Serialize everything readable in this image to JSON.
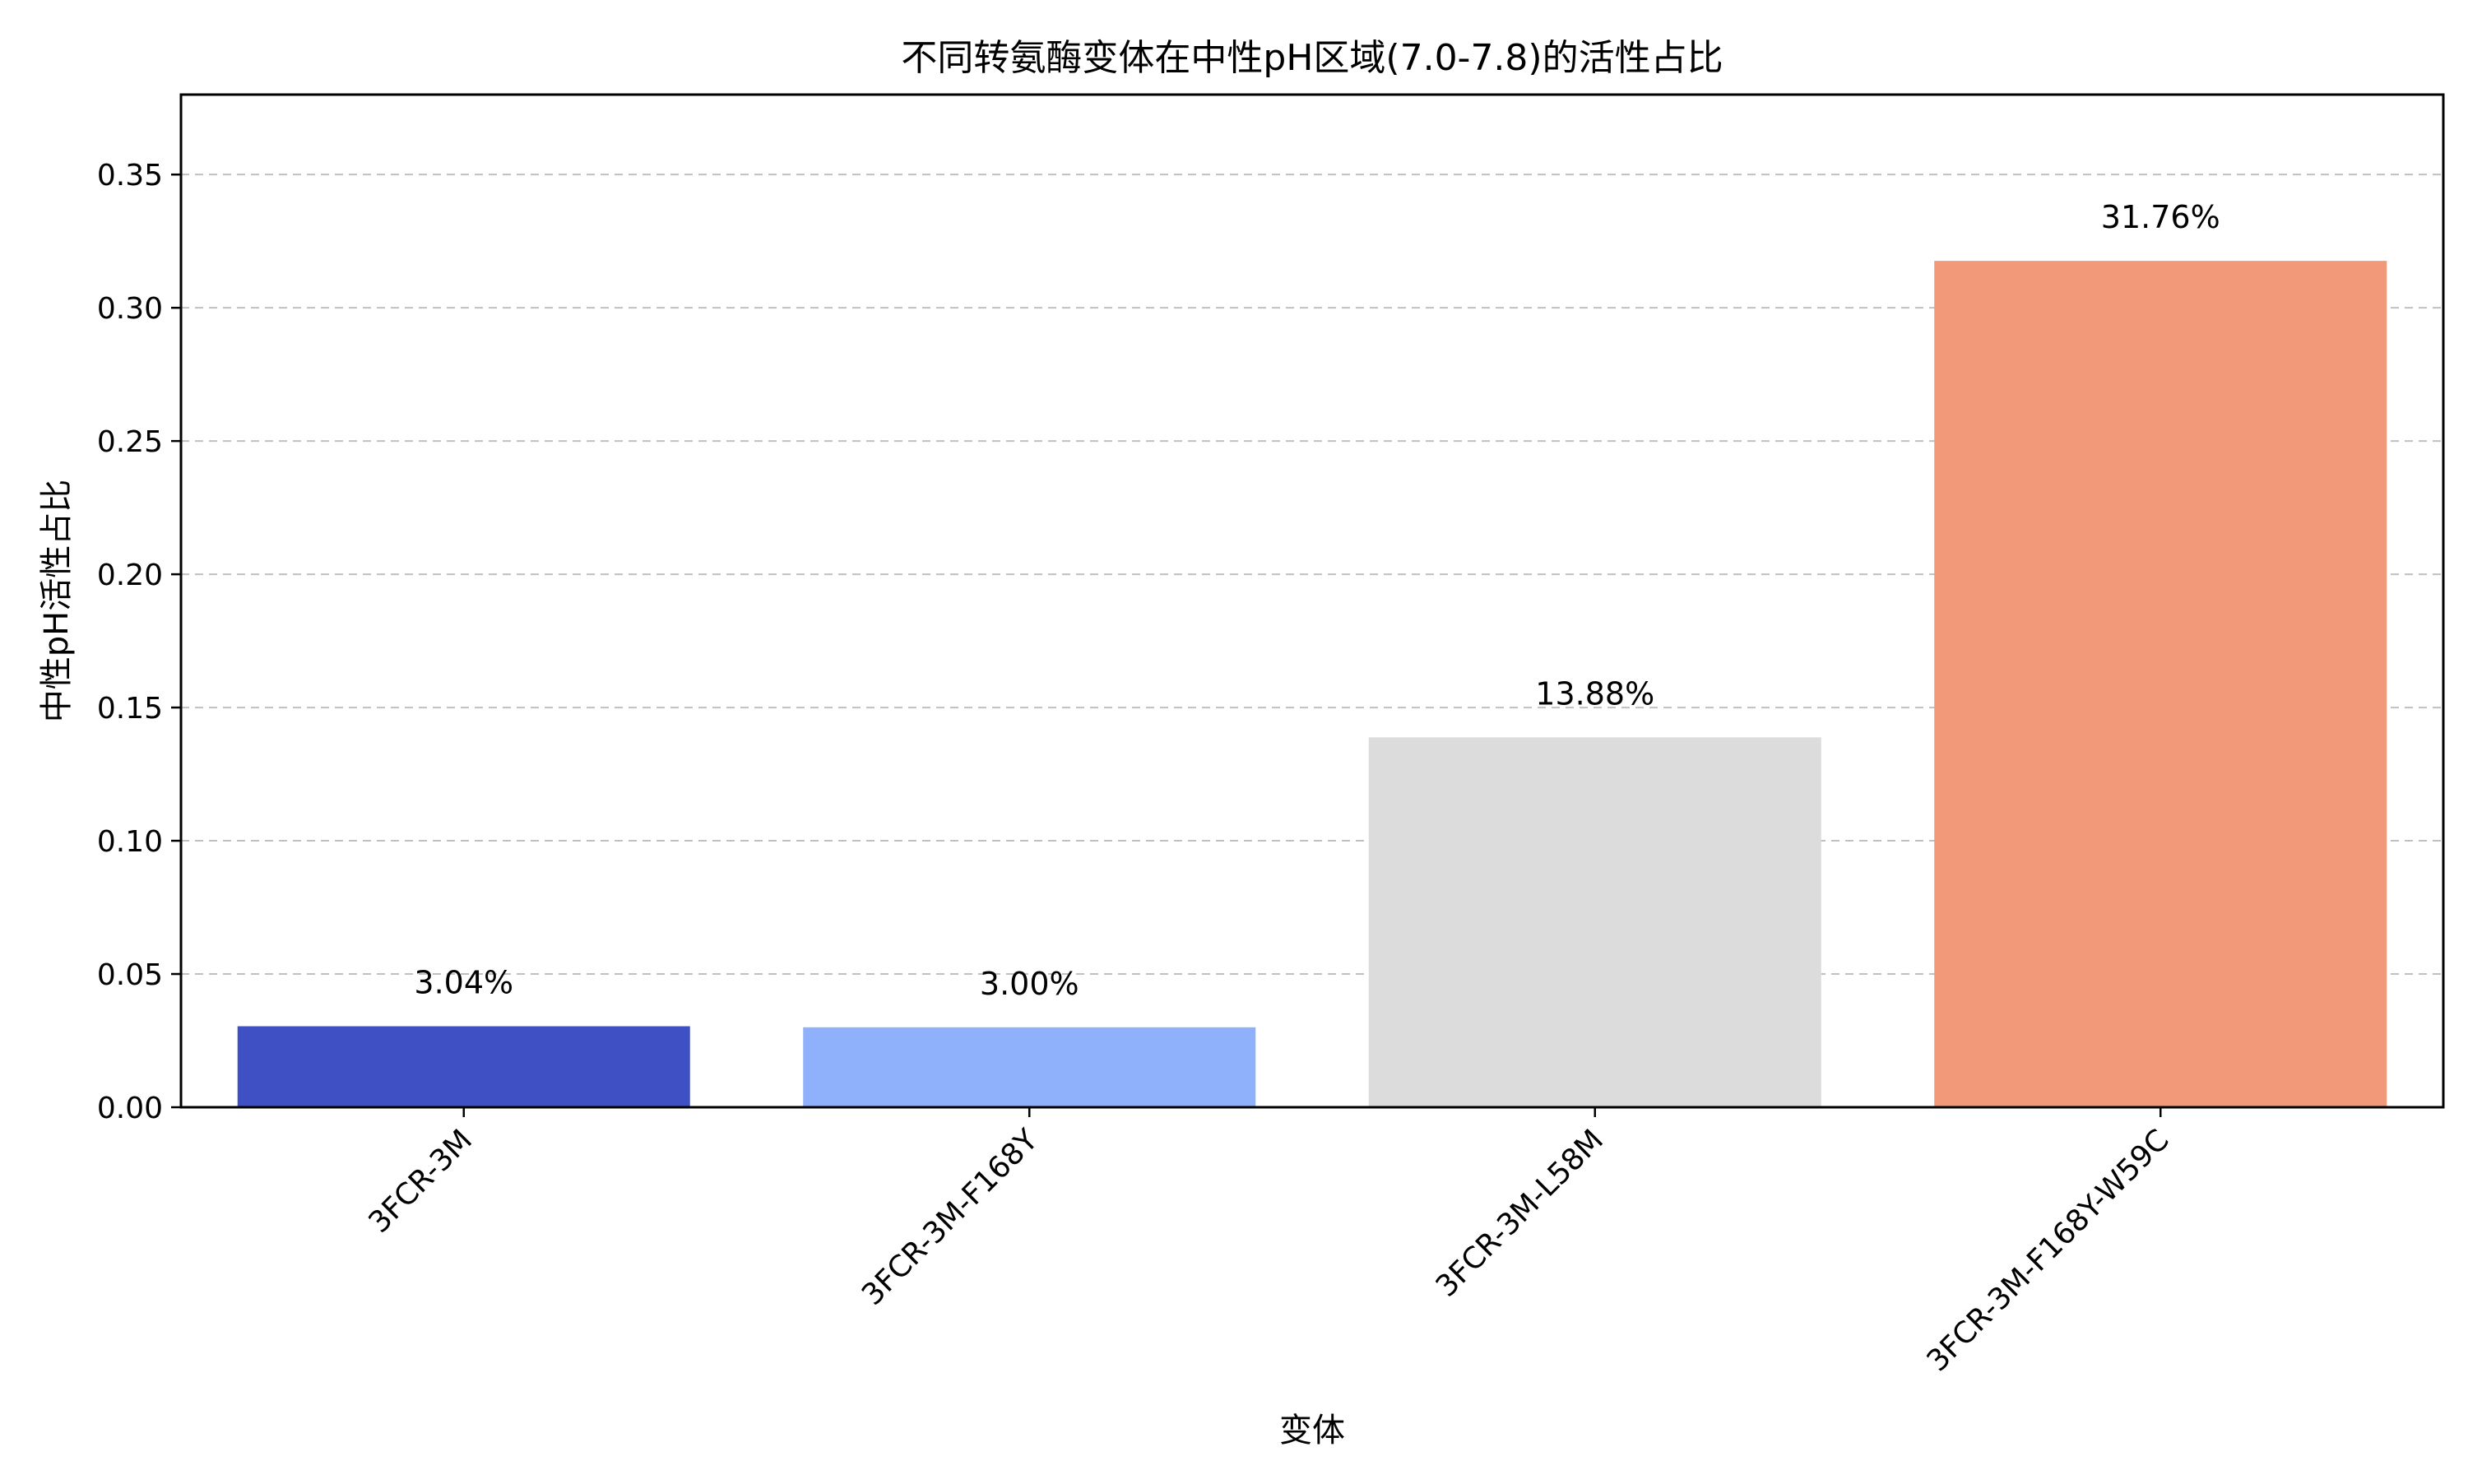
{
  "chart_data": {
    "type": "bar",
    "title": "不同转氨酶变体在中性pH区域(7.0-7.8)的活性占比",
    "xlabel": "变体",
    "ylabel": "中性pH活性占比",
    "categories": [
      "3FCR-3M",
      "3FCR-3M-F168Y",
      "3FCR-3M-L58M",
      "3FCR-3M-F168Y-W59C"
    ],
    "values": [
      0.0304,
      0.03,
      0.1388,
      0.3176
    ],
    "data_labels": [
      "3.04%",
      "3.00%",
      "13.88%",
      "31.76%"
    ],
    "bar_colors": [
      "#3f4fc4",
      "#8fb1fc",
      "#dcdcdc",
      "#f2997a"
    ],
    "ylim": [
      0,
      0.38
    ],
    "yticks": [
      0,
      0.05,
      0.1,
      0.15,
      0.2,
      0.25,
      0.3,
      0.35
    ],
    "ytick_labels": [
      "0.00",
      "0.05",
      "0.10",
      "0.15",
      "0.20",
      "0.25",
      "0.30",
      "0.35"
    ],
    "grid": "horizontal dashed",
    "legend": "none"
  }
}
